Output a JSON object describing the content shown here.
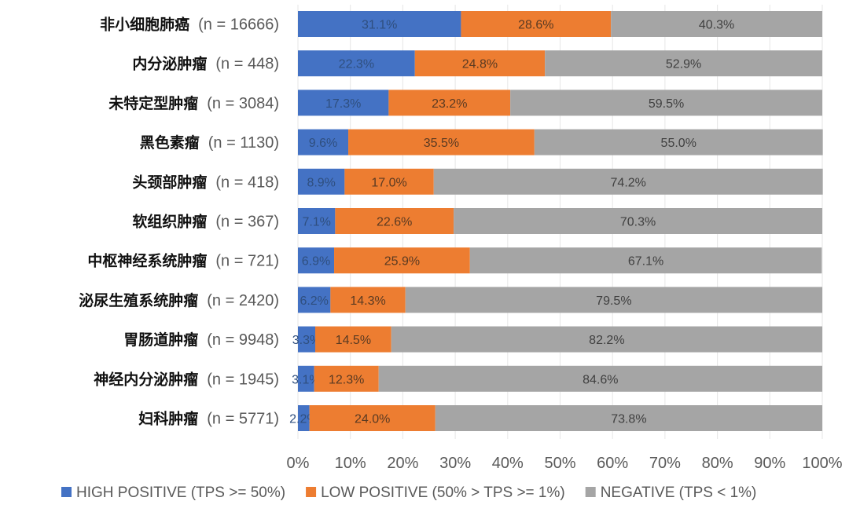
{
  "chart_data": {
    "type": "bar",
    "orientation": "horizontal",
    "stacked": "percent",
    "title": "",
    "xlabel": "",
    "ylabel": "",
    "xlim": [
      0,
      100
    ],
    "x_ticks": [
      "0%",
      "10%",
      "20%",
      "30%",
      "40%",
      "50%",
      "60%",
      "70%",
      "80%",
      "90%",
      "100%"
    ],
    "grid": true,
    "legend_position": "bottom",
    "categories": [
      {
        "name": "非小细胞肺癌",
        "n": "(n = 16666)"
      },
      {
        "name": "内分泌肿瘤",
        "n": "(n = 448)"
      },
      {
        "name": "未特定型肿瘤",
        "n": "(n = 3084)"
      },
      {
        "name": "黑色素瘤",
        "n": "(n = 1130)"
      },
      {
        "name": "头颈部肿瘤",
        "n": "(n = 418)"
      },
      {
        "name": "软组织肿瘤",
        "n": "(n = 367)"
      },
      {
        "name": "中枢神经系统肿瘤",
        "n": "(n = 721)"
      },
      {
        "name": "泌尿生殖系统肿瘤",
        "n": "(n = 2420)"
      },
      {
        "name": "胃肠道肿瘤",
        "n": "(n = 9948)"
      },
      {
        "name": "神经内分泌肿瘤",
        "n": "(n = 1945)"
      },
      {
        "name": "妇科肿瘤",
        "n": "(n = 5771)"
      }
    ],
    "series": [
      {
        "name": "HIGH POSITIVE (TPS >= 50%)",
        "color": "#4472c4",
        "label_color": "#2f4f7f",
        "values": [
          31.1,
          22.3,
          17.3,
          9.6,
          8.9,
          7.1,
          6.9,
          6.2,
          3.3,
          3.1,
          2.2
        ]
      },
      {
        "name": "LOW POSITIVE (50% > TPS >= 1%)",
        "color": "#ed7d31",
        "label_color": "#5a3a22",
        "values": [
          28.6,
          24.8,
          23.2,
          35.5,
          17.0,
          22.6,
          25.9,
          14.3,
          14.5,
          12.3,
          24.0
        ]
      },
      {
        "name": "NEGATIVE (TPS < 1%)",
        "color": "#a5a5a5",
        "label_color": "#404040",
        "values": [
          40.3,
          52.9,
          59.5,
          55.0,
          74.2,
          70.3,
          67.1,
          79.5,
          82.2,
          84.6,
          73.8
        ]
      }
    ]
  }
}
